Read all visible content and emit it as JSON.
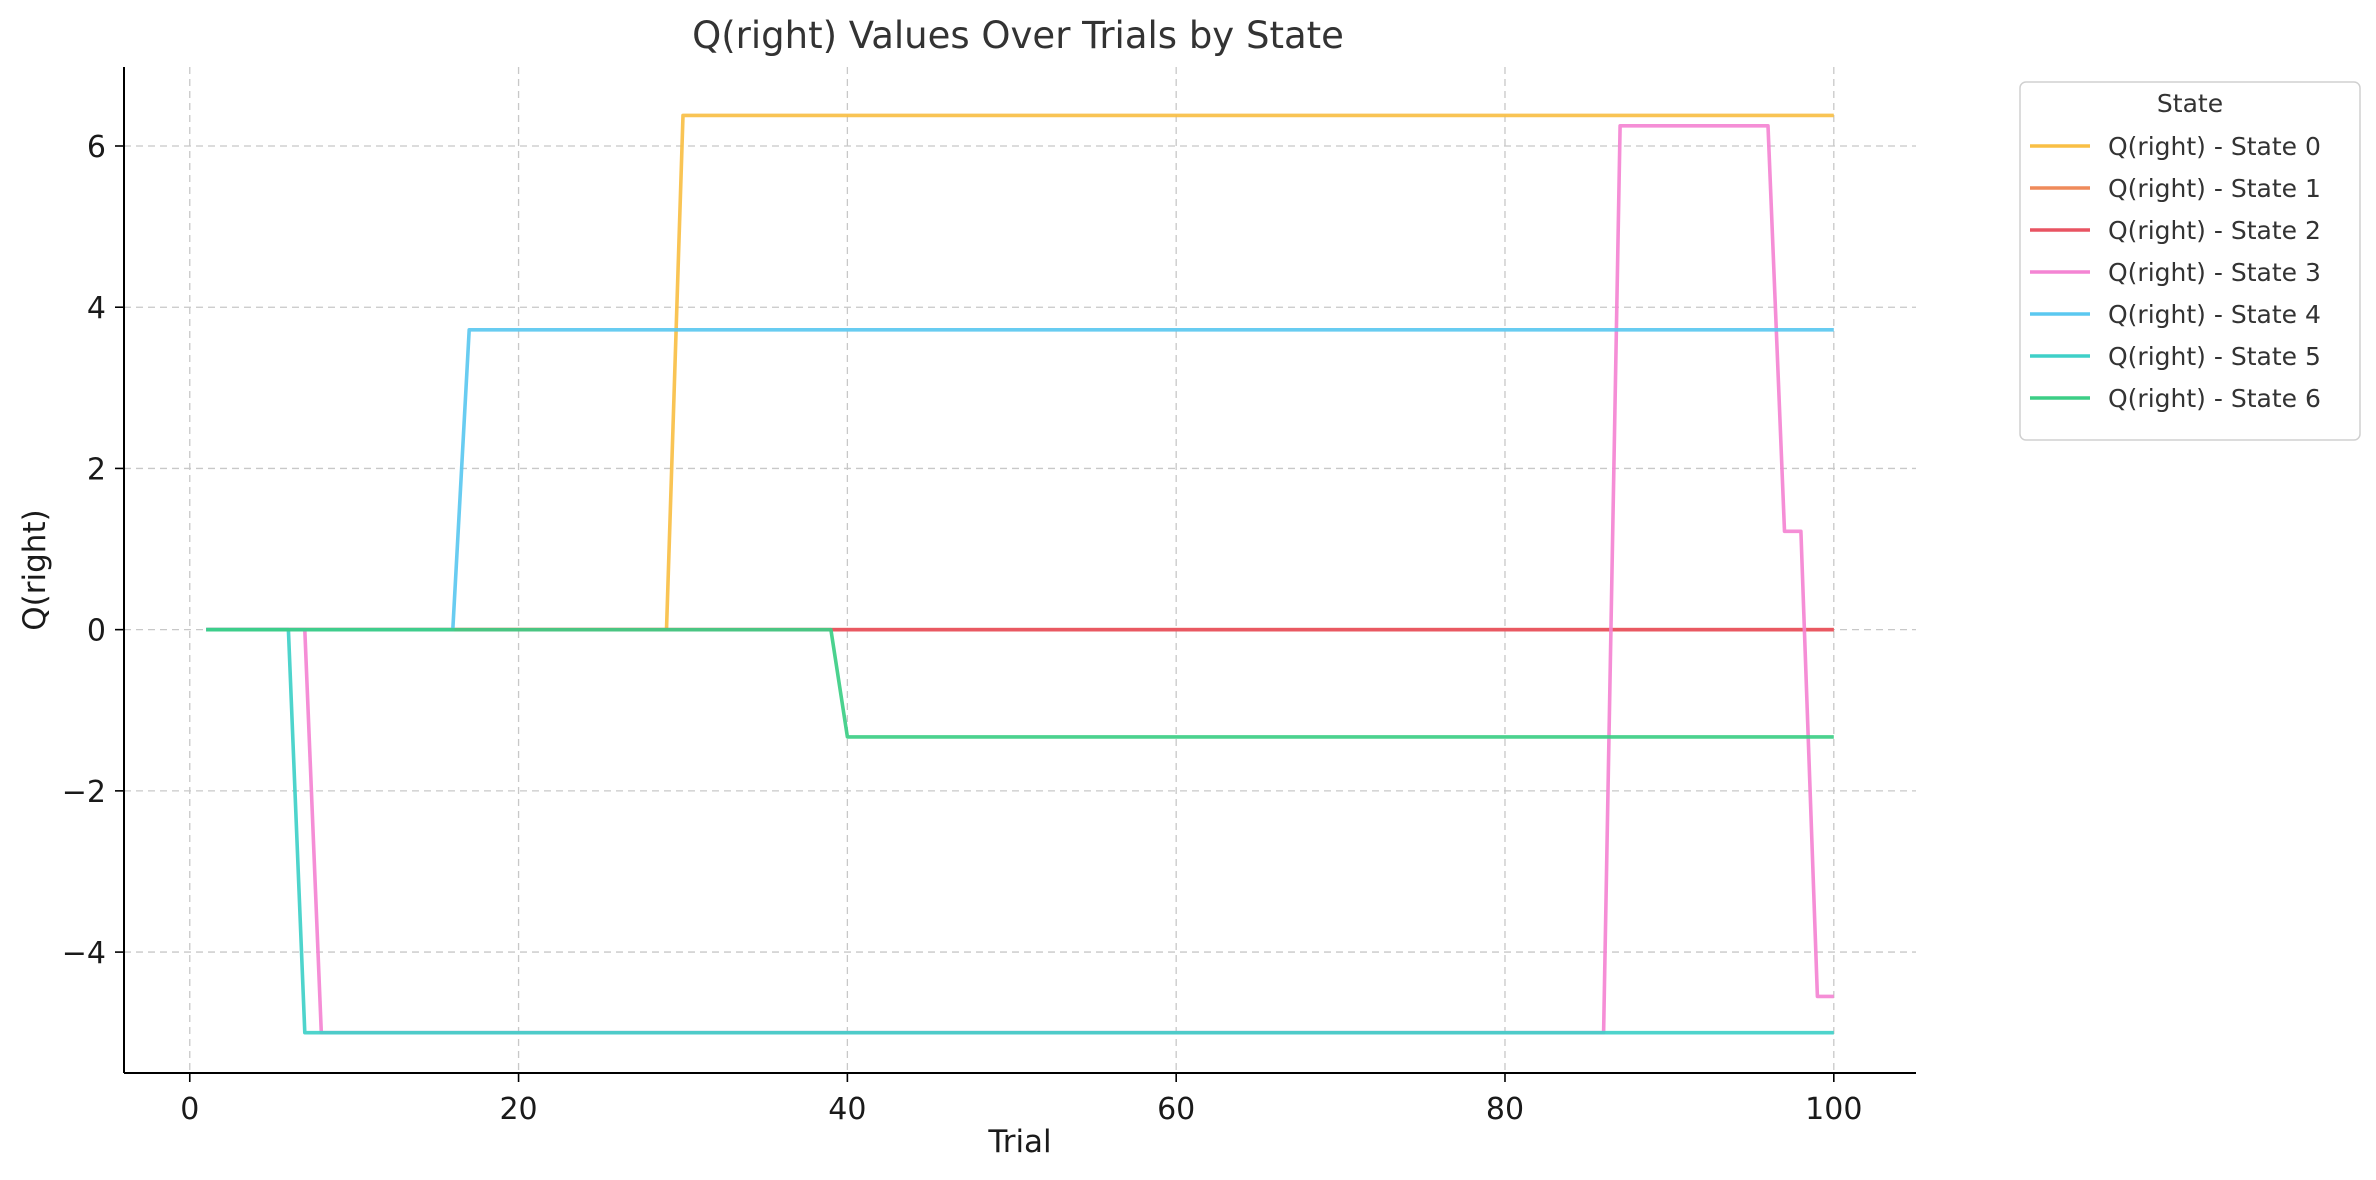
{
  "chart_data": {
    "type": "line",
    "title": "Q(right) Values Over Trials by State",
    "xlabel": "Trial",
    "ylabel": "Q(right)",
    "xlim": [
      -4,
      105
    ],
    "ylim": [
      -5.5,
      6.98
    ],
    "xticks": [
      0,
      20,
      40,
      60,
      80,
      100
    ],
    "yticks": [
      6,
      4,
      2,
      0,
      -2,
      -4
    ],
    "ytick_labels": [
      "6",
      "4",
      "2",
      "0",
      "−2",
      "−4"
    ],
    "grid": true,
    "legend": {
      "title": "State",
      "placement": "outside-top-right"
    },
    "series": [
      {
        "name": "Q(right) - State 0",
        "color": "#f9bf45",
        "points": [
          [
            1,
            0
          ],
          [
            29,
            0
          ],
          [
            30,
            6.38
          ],
          [
            100,
            6.38
          ]
        ]
      },
      {
        "name": "Q(right) - State 1",
        "color": "#ef8a5a",
        "points": [
          [
            1,
            0
          ],
          [
            100,
            0
          ]
        ]
      },
      {
        "name": "Q(right) - State 2",
        "color": "#e85462",
        "points": [
          [
            1,
            0
          ],
          [
            100,
            0
          ]
        ]
      },
      {
        "name": "Q(right) - State 3",
        "color": "#f484d3",
        "points": [
          [
            1,
            0
          ],
          [
            7,
            0
          ],
          [
            8,
            -5.0
          ],
          [
            86,
            -5.0
          ],
          [
            87,
            6.25
          ],
          [
            96,
            6.25
          ],
          [
            97,
            1.22
          ],
          [
            98,
            1.22
          ],
          [
            99,
            -4.55
          ],
          [
            100,
            -4.55
          ]
        ]
      },
      {
        "name": "Q(right) - State 4",
        "color": "#5bc8f0",
        "points": [
          [
            1,
            0
          ],
          [
            16,
            0
          ],
          [
            17,
            3.72
          ],
          [
            100,
            3.72
          ]
        ]
      },
      {
        "name": "Q(right) - State 5",
        "color": "#3fd0c8",
        "points": [
          [
            1,
            0
          ],
          [
            6,
            0
          ],
          [
            7,
            -5.0
          ],
          [
            100,
            -5.0
          ]
        ]
      },
      {
        "name": "Q(right) - State 6",
        "color": "#3cce85",
        "points": [
          [
            1,
            0
          ],
          [
            39,
            0
          ],
          [
            40,
            -1.33
          ],
          [
            100,
            -1.33
          ]
        ]
      }
    ]
  }
}
